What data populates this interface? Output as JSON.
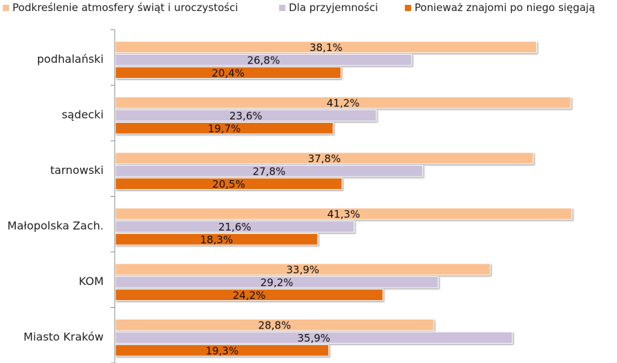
{
  "chart_data": {
    "type": "bar",
    "orientation": "horizontal",
    "categories": [
      "podhalański",
      "sądecki",
      "tarnowski",
      "Małopolska Zach.",
      "KOM",
      "Miasto Kraków"
    ],
    "series": [
      {
        "name": "Podkreślenie atmosfery świąt i uroczystości",
        "color": "#fac090",
        "values": [
          38.1,
          41.2,
          37.8,
          41.3,
          33.9,
          28.8
        ],
        "labels": [
          "38,1%",
          "41,2%",
          "37,8%",
          "41,3%",
          "33,9%",
          "28,8%"
        ]
      },
      {
        "name": "Dla przyjemności",
        "color": "#ccc1da",
        "values": [
          26.8,
          23.6,
          27.8,
          21.6,
          29.2,
          35.9
        ],
        "labels": [
          "26,8%",
          "23,6%",
          "27,8%",
          "21,6%",
          "29,2%",
          "35,9%"
        ]
      },
      {
        "name": "Ponieważ znajomi po niego sięgają",
        "color": "#e46c0a",
        "values": [
          20.4,
          19.7,
          20.5,
          18.3,
          24.2,
          19.3
        ],
        "labels": [
          "20,4%",
          "19,7%",
          "20,5%",
          "18,3%",
          "24,2%",
          "19,3%"
        ]
      }
    ],
    "xlim": [
      0,
      45
    ],
    "grid": false,
    "legend_position": "top"
  }
}
